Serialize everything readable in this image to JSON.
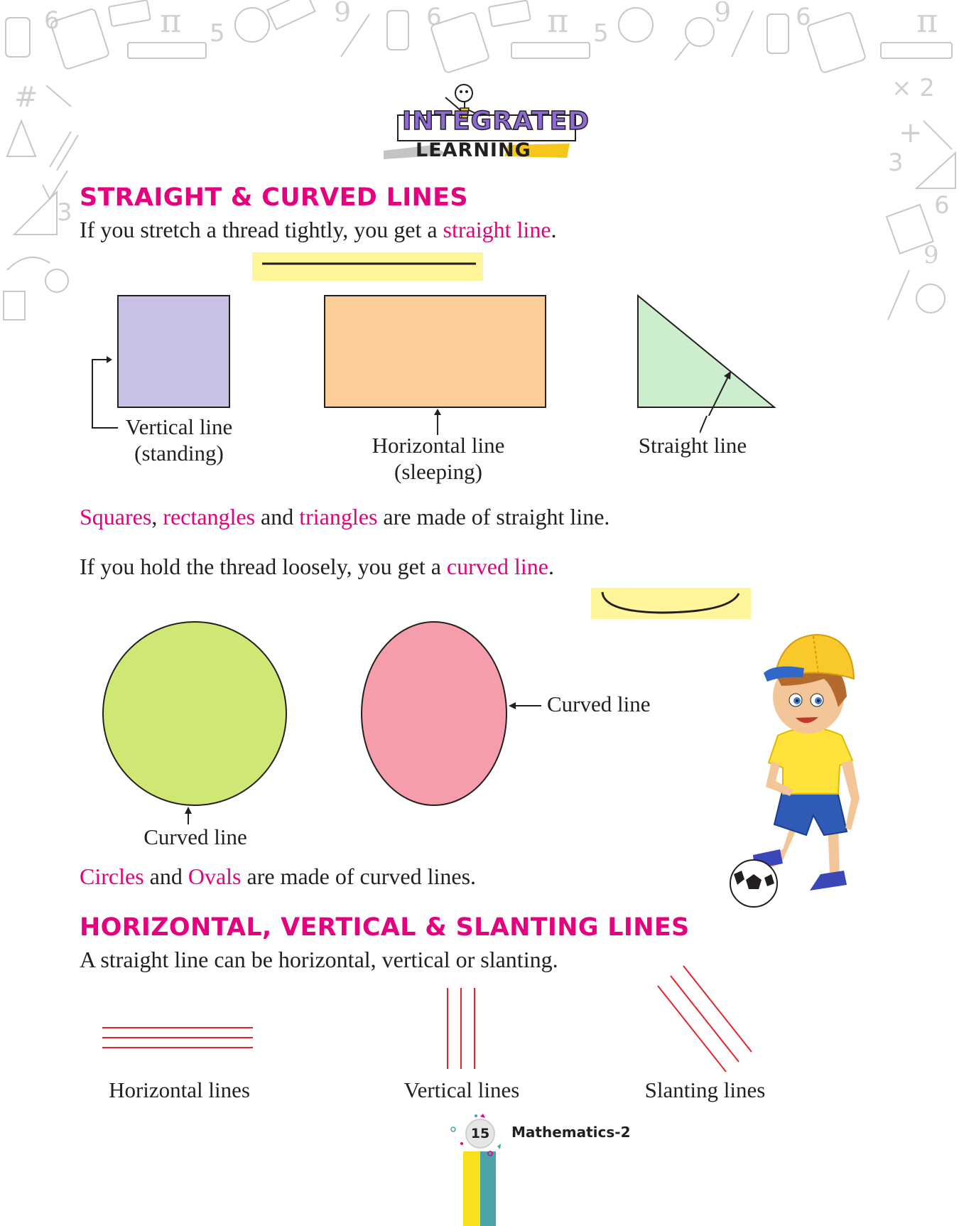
{
  "logo": {
    "line1": "INTEGRATED",
    "line2": "LEARNING"
  },
  "section1": {
    "heading": "STRAIGHT & CURVED LINES",
    "p1": {
      "before": "If you stretch a thread tightly, you get a ",
      "highlight": "straight line",
      "after": "."
    },
    "labels": {
      "vertical": [
        "Vertical line",
        "(standing)"
      ],
      "horizontal": [
        "Horizontal line",
        "(sleeping)"
      ],
      "straight": "Straight line"
    },
    "p2": {
      "w1": "Squares",
      "t1": ", ",
      "w2": "rectangles",
      "t2": " and ",
      "w3": "triangles",
      "t3": " are made of straight line."
    },
    "p3": {
      "before": "If you hold the thread loosely, you get a ",
      "highlight": "curved line",
      "after": "."
    },
    "curved_labels": {
      "oval": "Curved line",
      "circle": "Curved line"
    },
    "p4": {
      "w1": "Circles",
      "t1": " and ",
      "w2": "Ovals",
      "t2": " are made of curved lines."
    }
  },
  "section2": {
    "heading": "HORIZONTAL, VERTICAL & SLANTING LINES",
    "p1": "A straight line can be horizontal, vertical or slanting.",
    "labels": {
      "horizontal": "Horizontal lines",
      "vertical": "Vertical lines",
      "slanting": "Slanting lines"
    }
  },
  "footer": {
    "page_number": "15",
    "book": "Mathematics-2"
  },
  "colors": {
    "accent": "#e6007e",
    "square": "#c9c0e6",
    "rectangle": "#fbcd97",
    "triangle": "#cdeecd",
    "circle": "#cfe873",
    "oval": "#f59dab",
    "highlight": "#fff59a",
    "line_red": "#e3242b",
    "footer_yellow": "#f7e11c",
    "footer_teal": "#4aa3a8"
  },
  "icons": {
    "background": "math-doodles-icon",
    "mascot": "stick-figure-mascot-icon",
    "character": "boy-with-soccer-ball-icon"
  }
}
